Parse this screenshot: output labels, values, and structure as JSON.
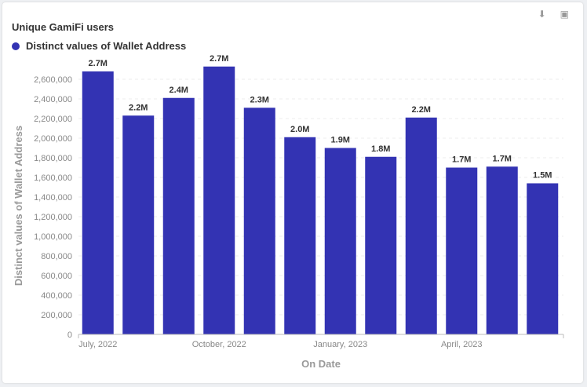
{
  "title": "Unique GamiFi users",
  "icons": {
    "download": "download-icon",
    "api": "api-icon"
  },
  "chart_data": {
    "type": "bar",
    "title": "Unique GamiFi users",
    "xlabel": "On Date",
    "ylabel": "Distinct values of Wallet Address",
    "color": "#3333b3",
    "ylim": [
      0,
      2700000
    ],
    "grid": true,
    "legend": "top-left",
    "yticks": [
      0,
      200000,
      400000,
      600000,
      800000,
      1000000,
      1200000,
      1400000,
      1600000,
      1800000,
      2000000,
      2200000,
      2400000,
      2600000
    ],
    "ytick_labels": [
      "0",
      "200,000",
      "400,000",
      "600,000",
      "800,000",
      "1,000,000",
      "1,200,000",
      "1,400,000",
      "1,600,000",
      "1,800,000",
      "2,000,000",
      "2,200,000",
      "2,400,000",
      "2,600,000"
    ],
    "xtick_labels": [
      {
        "index": 0,
        "label": "July, 2022"
      },
      {
        "index": 3,
        "label": "October, 2022"
      },
      {
        "index": 6,
        "label": "January, 2023"
      },
      {
        "index": 9,
        "label": "April, 2023"
      }
    ],
    "categories": [
      "2022-07",
      "2022-08",
      "2022-09",
      "2022-10",
      "2022-11",
      "2022-12",
      "2023-01",
      "2023-02",
      "2023-03",
      "2023-04",
      "2023-05",
      "2023-06"
    ],
    "series": [
      {
        "name": "Distinct values of Wallet Address",
        "values": [
          2680000,
          2230000,
          2410000,
          2730000,
          2310000,
          2010000,
          1900000,
          1810000,
          2210000,
          1700000,
          1710000,
          1540000
        ],
        "labels": [
          "2.7M",
          "2.2M",
          "2.4M",
          "2.7M",
          "2.3M",
          "2.0M",
          "1.9M",
          "1.8M",
          "2.2M",
          "1.7M",
          "1.7M",
          "1.5M"
        ]
      }
    ]
  }
}
